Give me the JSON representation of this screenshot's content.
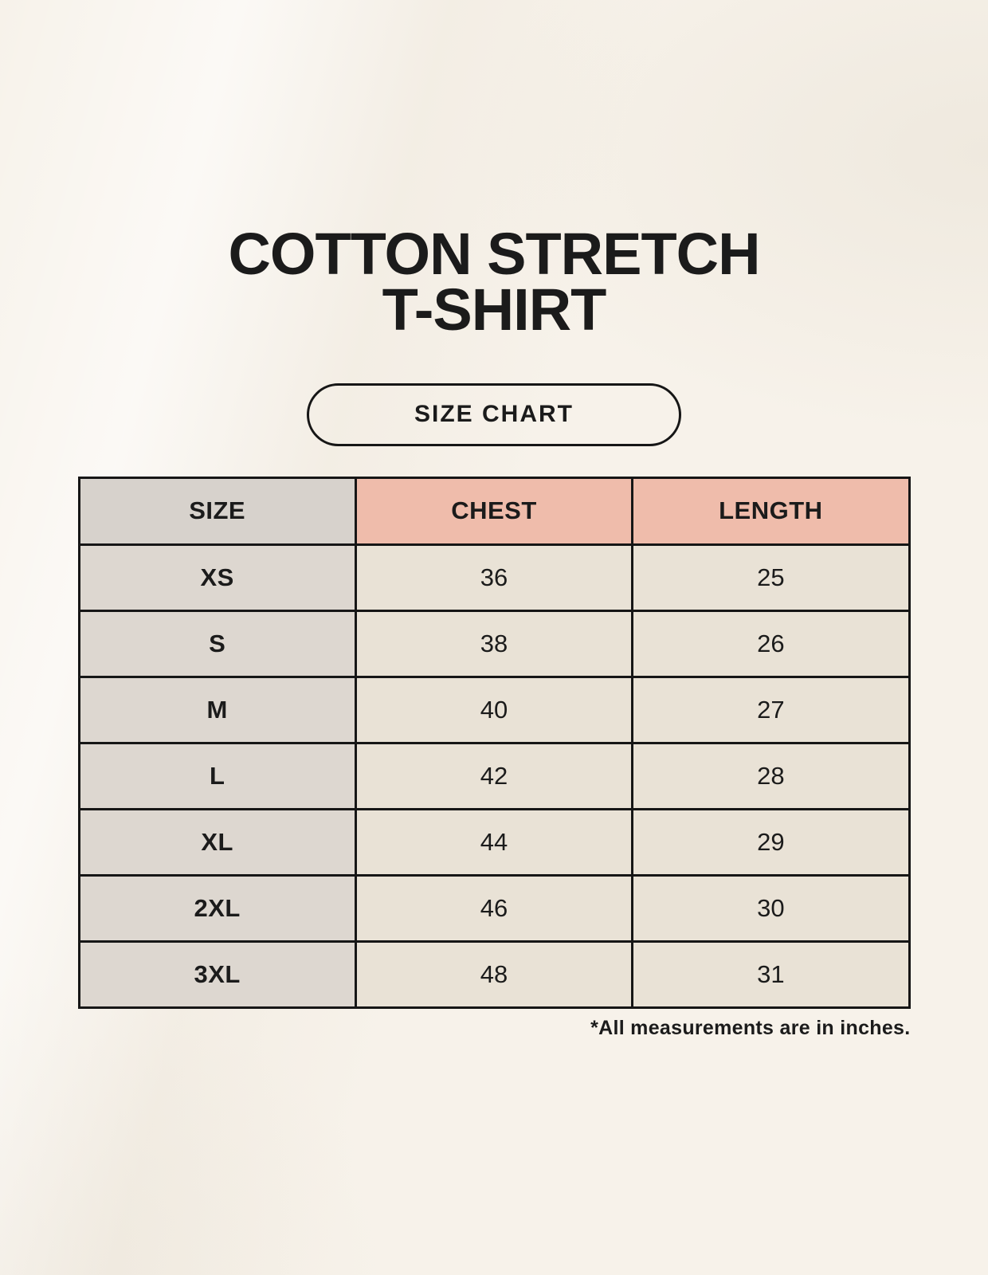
{
  "page": {
    "title_line1": "COTTON STRETCH",
    "title_line2": "T-SHIRT",
    "badge_label": "SIZE CHART",
    "footnote": "*All measurements are in inches."
  },
  "chart_data": {
    "type": "table",
    "title": "SIZE CHART",
    "columns": [
      "SIZE",
      "CHEST",
      "LENGTH"
    ],
    "rows": [
      [
        "XS",
        "36",
        "25"
      ],
      [
        "S",
        "38",
        "26"
      ],
      [
        "M",
        "40",
        "27"
      ],
      [
        "L",
        "42",
        "28"
      ],
      [
        "XL",
        "44",
        "29"
      ],
      [
        "2XL",
        "46",
        "30"
      ],
      [
        "3XL",
        "48",
        "31"
      ]
    ],
    "note": "*All measurements are in inches.",
    "layout_hints": {
      "size_column_header_bg": "gray",
      "measure_column_header_bg": "salmon",
      "grid": true
    }
  },
  "colors": {
    "page_bg": "#F7F2EA",
    "header_size_bg": "#D7D2CC",
    "header_measure_bg": "#EFBCAB",
    "cell_size_bg": "#DDD7D0",
    "cell_measure_bg": "#E9E2D6",
    "table_border": "#161616",
    "text": "#1B1B1B"
  }
}
